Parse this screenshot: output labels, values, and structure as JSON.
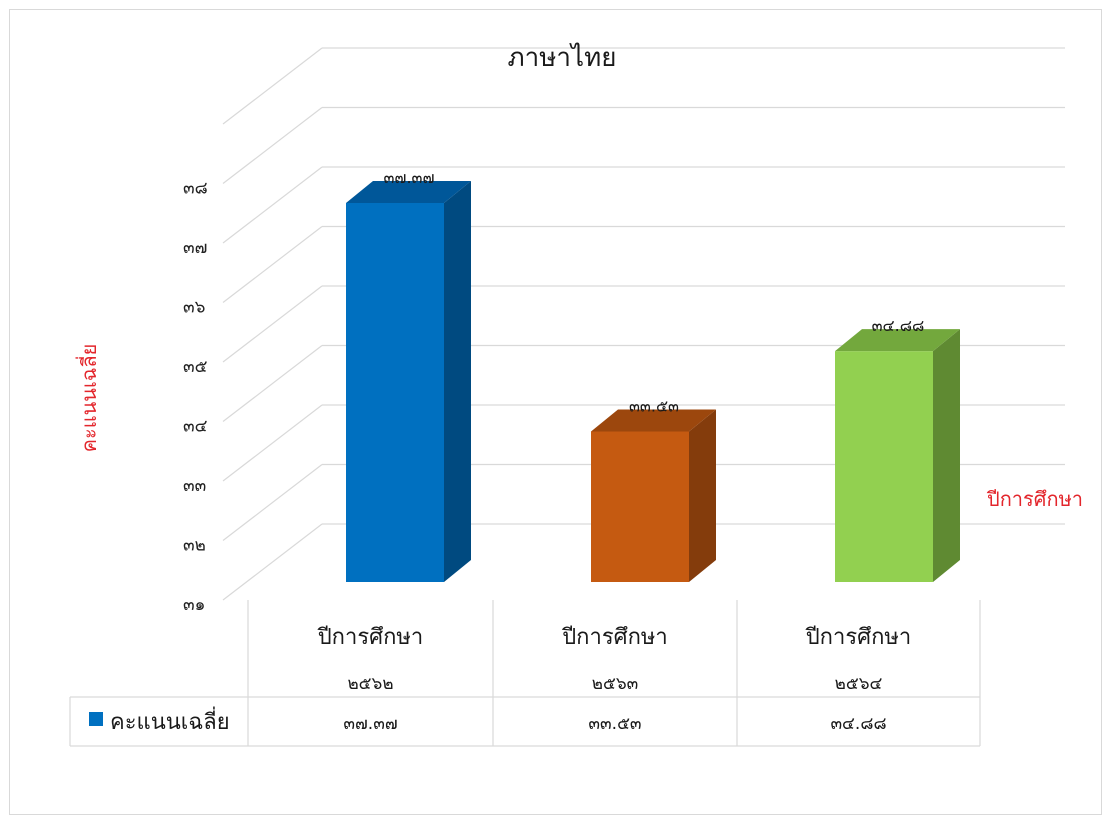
{
  "chart_data": {
    "type": "bar",
    "title": "ภาษาไทย",
    "xlabel": "ปีการศึกษา",
    "ylabel": "คะแนนเฉลี่ย",
    "categories": [
      {
        "line1": "ปีการศึกษา",
        "line2": "๒๕๖๒"
      },
      {
        "line1": "ปีการศึกษา",
        "line2": "๒๕๖๓"
      },
      {
        "line1": "ปีการศึกษา",
        "line2": "๒๕๖๔"
      }
    ],
    "series": [
      {
        "name": "คะแนนเฉลี่ย",
        "values": [
          37.37,
          33.53,
          34.88
        ],
        "value_labels": [
          "๓๗.๓๗",
          "๓๓.๕๓",
          "๓๔.๘๘"
        ],
        "colors": [
          "#0070c0",
          "#c55a11",
          "#92d050"
        ],
        "side_colors": [
          "#004a80",
          "#843c0c",
          "#5f8a32"
        ],
        "top_colors": [
          "#005799",
          "#9c470d",
          "#73a83d"
        ]
      }
    ],
    "ylim": [
      31,
      38
    ],
    "yticks": [
      31,
      32,
      33,
      34,
      35,
      36,
      37,
      38
    ],
    "ytick_labels": [
      "๓๑",
      "๓๒",
      "๓๓",
      "๓๔",
      "๓๕",
      "๓๖",
      "๓๗",
      "๓๘"
    ],
    "grid": true,
    "legend_color": "#0070c0",
    "data_table": true
  }
}
